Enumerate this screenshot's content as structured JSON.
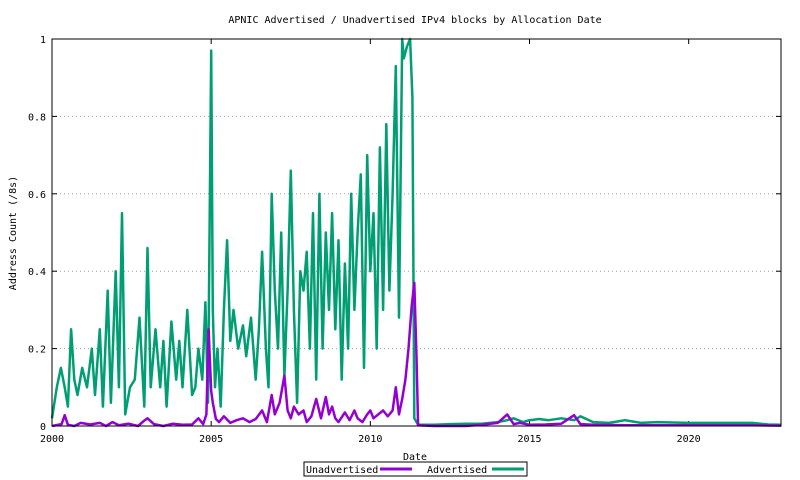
{
  "chart_data": {
    "type": "line",
    "title": "APNIC Advertised / Unadvertised IPv4 blocks by Allocation Date",
    "xlabel": "Date",
    "ylabel": "Address Count (/8s)",
    "xlim": [
      2000.0,
      2022.9
    ],
    "ylim": [
      0,
      1
    ],
    "grid": "horizontal dotted",
    "legend_position": "bottom-center, below axis",
    "x_ticks": [
      "2000",
      "2005",
      "2010",
      "2015",
      "2020"
    ],
    "y_ticks": [
      "0",
      "0.2",
      "0.4",
      "0.6",
      "0.8",
      "1"
    ],
    "series": [
      {
        "name": "Unadvertised",
        "color": "#9400d3",
        "x": [
          2000.0,
          2000.3,
          2000.4,
          2000.5,
          2000.7,
          2000.9,
          2001.2,
          2001.5,
          2001.7,
          2001.9,
          2002.1,
          2002.4,
          2002.7,
          2002.9,
          2003.0,
          2003.2,
          2003.5,
          2003.8,
          2004.1,
          2004.4,
          2004.6,
          2004.75,
          2004.85,
          2004.92,
          2005.0,
          2005.05,
          2005.15,
          2005.25,
          2005.4,
          2005.6,
          2005.8,
          2006.0,
          2006.2,
          2006.4,
          2006.6,
          2006.75,
          2006.9,
          2007.0,
          2007.15,
          2007.3,
          2007.4,
          2007.5,
          2007.6,
          2007.75,
          2007.9,
          2008.0,
          2008.15,
          2008.3,
          2008.45,
          2008.6,
          2008.7,
          2008.8,
          2008.9,
          2009.0,
          2009.2,
          2009.35,
          2009.5,
          2009.6,
          2009.75,
          2009.9,
          2010.0,
          2010.1,
          2010.25,
          2010.4,
          2010.55,
          2010.7,
          2010.8,
          2010.9,
          2011.0,
          2011.1,
          2011.2,
          2011.3,
          2011.38,
          2011.45,
          2011.5,
          2012.0,
          2013.0,
          2013.5,
          2014.0,
          2014.3,
          2014.5,
          2014.7,
          2015.0,
          2015.5,
          2016.0,
          2016.4,
          2016.6,
          2017.0,
          2018.0,
          2019.0,
          2020.0,
          2021.0,
          2022.0,
          2022.9
        ],
        "values": [
          0.0,
          0.005,
          0.028,
          0.003,
          0.0,
          0.008,
          0.004,
          0.008,
          0.0,
          0.01,
          0.002,
          0.006,
          0.0,
          0.014,
          0.02,
          0.005,
          0.0,
          0.006,
          0.003,
          0.004,
          0.02,
          0.005,
          0.03,
          0.25,
          0.09,
          0.06,
          0.018,
          0.01,
          0.025,
          0.008,
          0.015,
          0.02,
          0.01,
          0.018,
          0.04,
          0.01,
          0.08,
          0.03,
          0.06,
          0.13,
          0.04,
          0.02,
          0.05,
          0.03,
          0.04,
          0.01,
          0.025,
          0.07,
          0.02,
          0.075,
          0.03,
          0.05,
          0.02,
          0.01,
          0.035,
          0.015,
          0.04,
          0.02,
          0.01,
          0.03,
          0.04,
          0.02,
          0.03,
          0.04,
          0.025,
          0.04,
          0.1,
          0.03,
          0.07,
          0.12,
          0.2,
          0.31,
          0.37,
          0.18,
          0.002,
          0.0,
          0.0,
          0.003,
          0.008,
          0.03,
          0.005,
          0.008,
          0.003,
          0.004,
          0.006,
          0.028,
          0.005,
          0.003,
          0.002,
          0.002,
          0.002,
          0.002,
          0.002,
          0.001
        ]
      },
      {
        "name": "Advertised",
        "color": "#009e73",
        "x": [
          2000.0,
          2000.15,
          2000.28,
          2000.4,
          2000.5,
          2000.6,
          2000.7,
          2000.8,
          2000.95,
          2001.1,
          2001.25,
          2001.35,
          2001.5,
          2001.6,
          2001.75,
          2001.85,
          2002.0,
          2002.1,
          2002.2,
          2002.3,
          2002.45,
          2002.6,
          2002.75,
          2002.9,
          2003.0,
          2003.1,
          2003.25,
          2003.4,
          2003.5,
          2003.6,
          2003.75,
          2003.9,
          2004.0,
          2004.1,
          2004.25,
          2004.4,
          2004.5,
          2004.6,
          2004.72,
          2004.82,
          2004.9,
          2005.0,
          2005.05,
          2005.12,
          2005.2,
          2005.3,
          2005.4,
          2005.5,
          2005.6,
          2005.7,
          2005.85,
          2006.0,
          2006.1,
          2006.25,
          2006.4,
          2006.5,
          2006.6,
          2006.72,
          2006.8,
          2006.9,
          2007.0,
          2007.1,
          2007.2,
          2007.3,
          2007.4,
          2007.5,
          2007.6,
          2007.7,
          2007.8,
          2007.9,
          2008.0,
          2008.1,
          2008.2,
          2008.3,
          2008.4,
          2008.5,
          2008.6,
          2008.7,
          2008.8,
          2008.9,
          2009.0,
          2009.1,
          2009.2,
          2009.3,
          2009.4,
          2009.5,
          2009.6,
          2009.7,
          2009.8,
          2009.9,
          2010.0,
          2010.1,
          2010.2,
          2010.3,
          2010.4,
          2010.5,
          2010.6,
          2010.7,
          2010.8,
          2010.9,
          2011.0,
          2011.05,
          2011.15,
          2011.25,
          2011.32,
          2011.38,
          2011.5,
          2012.0,
          2012.5,
          2013.0,
          2013.5,
          2014.0,
          2014.3,
          2014.5,
          2014.8,
          2015.0,
          2015.3,
          2015.6,
          2016.0,
          2016.4,
          2016.6,
          2017.0,
          2017.5,
          2018.0,
          2018.5,
          2019.0,
          2020.0,
          2021.0,
          2022.0,
          2022.5,
          2022.9
        ],
        "values": [
          0.02,
          0.1,
          0.15,
          0.1,
          0.05,
          0.25,
          0.12,
          0.08,
          0.15,
          0.1,
          0.2,
          0.08,
          0.25,
          0.05,
          0.35,
          0.06,
          0.4,
          0.1,
          0.55,
          0.03,
          0.1,
          0.12,
          0.28,
          0.05,
          0.46,
          0.1,
          0.25,
          0.1,
          0.22,
          0.05,
          0.27,
          0.12,
          0.22,
          0.1,
          0.3,
          0.08,
          0.1,
          0.2,
          0.12,
          0.32,
          0.06,
          0.97,
          0.3,
          0.1,
          0.2,
          0.05,
          0.3,
          0.48,
          0.22,
          0.3,
          0.2,
          0.26,
          0.18,
          0.28,
          0.12,
          0.25,
          0.45,
          0.2,
          0.1,
          0.6,
          0.35,
          0.2,
          0.5,
          0.13,
          0.35,
          0.66,
          0.3,
          0.06,
          0.4,
          0.35,
          0.45,
          0.2,
          0.55,
          0.12,
          0.6,
          0.2,
          0.5,
          0.3,
          0.55,
          0.25,
          0.48,
          0.12,
          0.42,
          0.2,
          0.6,
          0.3,
          0.5,
          0.65,
          0.15,
          0.7,
          0.4,
          0.55,
          0.2,
          0.72,
          0.3,
          0.78,
          0.35,
          0.6,
          0.93,
          0.28,
          1.0,
          0.95,
          0.98,
          1.0,
          0.85,
          0.02,
          0.003,
          0.003,
          0.005,
          0.006,
          0.006,
          0.01,
          0.015,
          0.02,
          0.01,
          0.015,
          0.018,
          0.015,
          0.02,
          0.015,
          0.025,
          0.01,
          0.008,
          0.015,
          0.008,
          0.01,
          0.008,
          0.008,
          0.008,
          0.004,
          0.003
        ]
      }
    ]
  }
}
